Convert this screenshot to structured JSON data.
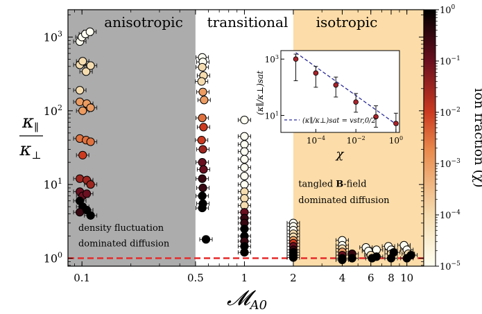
{
  "chart_data": {
    "type": "scatter",
    "xlabel": "𝓜",
    "xlabel_sub": "A0",
    "ylabel_num": "κ",
    "ylabel_num_sub": "∥",
    "ylabel_den": "κ",
    "ylabel_den_sub": "⊥",
    "x_scale": "log",
    "y_scale": "log",
    "xlim": [
      0.082,
      12.7
    ],
    "ylim": [
      0.78,
      2350
    ],
    "x_ticks": [
      {
        "value": 0.1,
        "label": "0.1"
      },
      {
        "value": 0.5,
        "label": "0.5"
      },
      {
        "value": 1,
        "label": "1"
      },
      {
        "value": 2,
        "label": "2"
      },
      {
        "value": 4,
        "label": "4"
      },
      {
        "value": 6,
        "label": "6"
      },
      {
        "value": 8,
        "label": "8"
      },
      {
        "value": 10,
        "label": "10"
      }
    ],
    "y_ticks": [
      {
        "value": 1,
        "base": "10",
        "exp": "0"
      },
      {
        "value": 10,
        "base": "10",
        "exp": "1"
      },
      {
        "value": 100,
        "base": "10",
        "exp": "2"
      },
      {
        "value": 1000,
        "base": "10",
        "exp": "3"
      }
    ],
    "regions": [
      {
        "label": "anisotropic",
        "x0": 0.082,
        "x1": 0.5,
        "color": "#acacac"
      },
      {
        "label": "transitional",
        "x0": 0.5,
        "x1": 2,
        "color": "#ffffff"
      },
      {
        "label": "isotropic",
        "x0": 2,
        "x1": 12.7,
        "color": "#fcdca8"
      }
    ],
    "reference_line": {
      "y": 1,
      "color": "#e52a2a",
      "style": "dashed"
    },
    "annotations": [
      {
        "text": "density fluctuation",
        "x": 0.095,
        "y": 2.35
      },
      {
        "text": "dominated diffusion",
        "x": 0.095,
        "y": 1.45
      },
      {
        "text": "tangled ",
        "bold": "B",
        "rest": "-field",
        "x": 2.15,
        "y": 9.3
      },
      {
        "text": "dominated diffusion",
        "x": 2.15,
        "y": 5.6
      }
    ],
    "colorbar": {
      "label": "ion fraction (χ)",
      "scale": "log",
      "range": [
        1e-05,
        1
      ],
      "ticks": [
        {
          "value": 1,
          "base": "10",
          "exp": "0"
        },
        {
          "value": 0.1,
          "base": "10",
          "exp": "−1"
        },
        {
          "value": 0.01,
          "base": "10",
          "exp": "−2"
        },
        {
          "value": 0.001,
          "base": "10",
          "exp": "−3"
        },
        {
          "value": 0.0001,
          "base": "10",
          "exp": "−4"
        },
        {
          "value": 1e-05,
          "base": "10",
          "exp": "−5"
        }
      ]
    },
    "points": [
      {
        "x": 0.097,
        "y": 870,
        "chi": 1e-05
      },
      {
        "x": 0.1,
        "y": 1000,
        "chi": 1e-05
      },
      {
        "x": 0.105,
        "y": 1100,
        "chi": 1e-05
      },
      {
        "x": 0.112,
        "y": 1180,
        "chi": 1e-05
      },
      {
        "x": 0.097,
        "y": 420,
        "chi": 0.0001
      },
      {
        "x": 0.101,
        "y": 470,
        "chi": 0.0001
      },
      {
        "x": 0.106,
        "y": 340,
        "chi": 0.0001
      },
      {
        "x": 0.113,
        "y": 410,
        "chi": 0.0001
      },
      {
        "x": 0.097,
        "y": 190,
        "chi": 0.0001
      },
      {
        "x": 0.097,
        "y": 132,
        "chi": 0.001
      },
      {
        "x": 0.101,
        "y": 100,
        "chi": 0.001
      },
      {
        "x": 0.107,
        "y": 125,
        "chi": 0.001
      },
      {
        "x": 0.113,
        "y": 110,
        "chi": 0.001
      },
      {
        "x": 0.097,
        "y": 42,
        "chi": 0.003
      },
      {
        "x": 0.106,
        "y": 40,
        "chi": 0.003
      },
      {
        "x": 0.113,
        "y": 38,
        "chi": 0.003
      },
      {
        "x": 0.101,
        "y": 25,
        "chi": 0.01
      },
      {
        "x": 0.097,
        "y": 12,
        "chi": 0.03
      },
      {
        "x": 0.107,
        "y": 11.5,
        "chi": 0.03
      },
      {
        "x": 0.113,
        "y": 10,
        "chi": 0.03
      },
      {
        "x": 0.097,
        "y": 8,
        "chi": 0.1
      },
      {
        "x": 0.101,
        "y": 7,
        "chi": 0.1
      },
      {
        "x": 0.107,
        "y": 7.5,
        "chi": 0.1
      },
      {
        "x": 0.097,
        "y": 6,
        "chi": 1
      },
      {
        "x": 0.101,
        "y": 5,
        "chi": 1
      },
      {
        "x": 0.097,
        "y": 4.2,
        "chi": 0.3
      },
      {
        "x": 0.107,
        "y": 4.5,
        "chi": 1
      },
      {
        "x": 0.113,
        "y": 3.8,
        "chi": 1
      },
      {
        "x": 0.55,
        "y": 530,
        "chi": 1e-05
      },
      {
        "x": 0.555,
        "y": 460,
        "chi": 1e-05
      },
      {
        "x": 0.55,
        "y": 390,
        "chi": 0.0001
      },
      {
        "x": 0.56,
        "y": 300,
        "chi": 0.0001
      },
      {
        "x": 0.545,
        "y": 250,
        "chi": 0.0001
      },
      {
        "x": 0.555,
        "y": 180,
        "chi": 0.001
      },
      {
        "x": 0.565,
        "y": 140,
        "chi": 0.001
      },
      {
        "x": 0.55,
        "y": 80,
        "chi": 0.003
      },
      {
        "x": 0.56,
        "y": 60,
        "chi": 0.01
      },
      {
        "x": 0.545,
        "y": 40,
        "chi": 0.01
      },
      {
        "x": 0.555,
        "y": 30,
        "chi": 0.03
      },
      {
        "x": 0.55,
        "y": 20,
        "chi": 0.1
      },
      {
        "x": 0.56,
        "y": 16,
        "chi": 0.1
      },
      {
        "x": 0.55,
        "y": 12,
        "chi": 0.3
      },
      {
        "x": 0.555,
        "y": 9,
        "chi": 0.3
      },
      {
        "x": 0.55,
        "y": 7,
        "chi": 1
      },
      {
        "x": 0.555,
        "y": 5.5,
        "chi": 1
      },
      {
        "x": 0.55,
        "y": 4.8,
        "chi": 1
      },
      {
        "x": 0.58,
        "y": 1.8,
        "chi": 1
      },
      {
        "x": 1.0,
        "y": 75,
        "chi": 1e-05
      },
      {
        "x": 1.0,
        "y": 45,
        "chi": 1e-05
      },
      {
        "x": 1.0,
        "y": 35,
        "chi": 1e-05
      },
      {
        "x": 1.0,
        "y": 28,
        "chi": 1e-05
      },
      {
        "x": 1.0,
        "y": 22,
        "chi": 1e-05
      },
      {
        "x": 1.0,
        "y": 17,
        "chi": 1e-05
      },
      {
        "x": 1.0,
        "y": 13,
        "chi": 1e-05
      },
      {
        "x": 1.0,
        "y": 10,
        "chi": 1e-05
      },
      {
        "x": 1.0,
        "y": 8,
        "chi": 0.0001
      },
      {
        "x": 1.0,
        "y": 6.5,
        "chi": 0.0001
      },
      {
        "x": 1.0,
        "y": 5.2,
        "chi": 0.0001
      },
      {
        "x": 1.0,
        "y": 4.2,
        "chi": 0.1
      },
      {
        "x": 1.0,
        "y": 3.5,
        "chi": 0.3
      },
      {
        "x": 1.0,
        "y": 3.0,
        "chi": 0.3
      },
      {
        "x": 1.0,
        "y": 2.5,
        "chi": 1
      },
      {
        "x": 1.0,
        "y": 2.0,
        "chi": 1
      },
      {
        "x": 1.0,
        "y": 1.7,
        "chi": 0.3
      },
      {
        "x": 1.0,
        "y": 1.45,
        "chi": 1
      },
      {
        "x": 1.0,
        "y": 1.2,
        "chi": 1
      },
      {
        "x": 2.0,
        "y": 3.0,
        "chi": 1e-05
      },
      {
        "x": 2.0,
        "y": 2.7,
        "chi": 1e-05
      },
      {
        "x": 2.0,
        "y": 2.4,
        "chi": 1e-05
      },
      {
        "x": 2.0,
        "y": 2.15,
        "chi": 0.0001
      },
      {
        "x": 2.0,
        "y": 1.95,
        "chi": 0.0001
      },
      {
        "x": 2.0,
        "y": 1.75,
        "chi": 0.001
      },
      {
        "x": 2.0,
        "y": 1.6,
        "chi": 0.01
      },
      {
        "x": 2.0,
        "y": 1.45,
        "chi": 0.1
      },
      {
        "x": 2.0,
        "y": 1.3,
        "chi": 0.3
      },
      {
        "x": 2.0,
        "y": 1.2,
        "chi": 1
      },
      {
        "x": 2.0,
        "y": 1.1,
        "chi": 1
      },
      {
        "x": 2.0,
        "y": 1.02,
        "chi": 1
      },
      {
        "x": 4.0,
        "y": 1.75,
        "chi": 1e-05
      },
      {
        "x": 4.0,
        "y": 1.5,
        "chi": 1e-05
      },
      {
        "x": 4.0,
        "y": 1.35,
        "chi": 0.0001
      },
      {
        "x": 4.0,
        "y": 1.22,
        "chi": 0.001
      },
      {
        "x": 4.0,
        "y": 1.1,
        "chi": 0.1
      },
      {
        "x": 4.0,
        "y": 1.0,
        "chi": 1
      },
      {
        "x": 4.0,
        "y": 0.95,
        "chi": 1
      },
      {
        "x": 4.6,
        "y": 1.15,
        "chi": 0.3
      },
      {
        "x": 4.6,
        "y": 1.0,
        "chi": 1
      },
      {
        "x": 5.6,
        "y": 1.4,
        "chi": 1e-05
      },
      {
        "x": 5.8,
        "y": 1.25,
        "chi": 1e-05
      },
      {
        "x": 6.0,
        "y": 1.1,
        "chi": 0.0001
      },
      {
        "x": 6.1,
        "y": 1.0,
        "chi": 1
      },
      {
        "x": 6.5,
        "y": 1.3,
        "chi": 1e-05
      },
      {
        "x": 6.5,
        "y": 1.05,
        "chi": 1
      },
      {
        "x": 7.7,
        "y": 1.45,
        "chi": 1e-05
      },
      {
        "x": 8.0,
        "y": 1.3,
        "chi": 1e-05
      },
      {
        "x": 8.0,
        "y": 1.15,
        "chi": 0.0001
      },
      {
        "x": 8.0,
        "y": 1.0,
        "chi": 1
      },
      {
        "x": 8.3,
        "y": 1.2,
        "chi": 1
      },
      {
        "x": 9.6,
        "y": 1.5,
        "chi": 1e-05
      },
      {
        "x": 10.0,
        "y": 1.3,
        "chi": 1e-05
      },
      {
        "x": 10.2,
        "y": 1.15,
        "chi": 0.0001
      },
      {
        "x": 10.0,
        "y": 1.0,
        "chi": 1
      },
      {
        "x": 10.6,
        "y": 1.1,
        "chi": 1
      }
    ],
    "inset": {
      "type": "scatter",
      "xlabel": "χ",
      "ylabel": "(κ∥/κ⊥)sat",
      "x_scale": "log",
      "y_scale": "log",
      "xlim": [
        1.8e-06,
        1.5
      ],
      "ylim": [
        2.5,
        2000
      ],
      "x_ticks": [
        {
          "value": 0.0001,
          "base": "10",
          "exp": "−4"
        },
        {
          "value": 0.01,
          "base": "10",
          "exp": "−2"
        },
        {
          "value": 1,
          "base": "10",
          "exp": "0"
        }
      ],
      "y_ticks": [
        {
          "value": 10,
          "base": "10",
          "exp": "1"
        },
        {
          "value": 1000,
          "base": "10",
          "exp": "3"
        }
      ],
      "points": [
        {
          "x": 1e-05,
          "y": 1000,
          "lo": 170,
          "hi": 1500
        },
        {
          "x": 0.0001,
          "y": 320,
          "lo": 100,
          "hi": 550
        },
        {
          "x": 0.001,
          "y": 120,
          "lo": 45,
          "hi": 230
        },
        {
          "x": 0.01,
          "y": 30,
          "lo": 13,
          "hi": 60
        },
        {
          "x": 0.1,
          "y": 9,
          "lo": 3.8,
          "hi": 22
        },
        {
          "x": 1,
          "y": 5.2,
          "lo": 2.5,
          "hi": 12
        }
      ],
      "fit_line": {
        "x": [
          1e-05,
          1.5
        ],
        "y": [
          1700,
          4.0
        ],
        "color": "#2b2b9a",
        "style": "dashed"
      },
      "legend_text": "(κ∥/κ⊥)sat = vstr,0/2"
    }
  }
}
